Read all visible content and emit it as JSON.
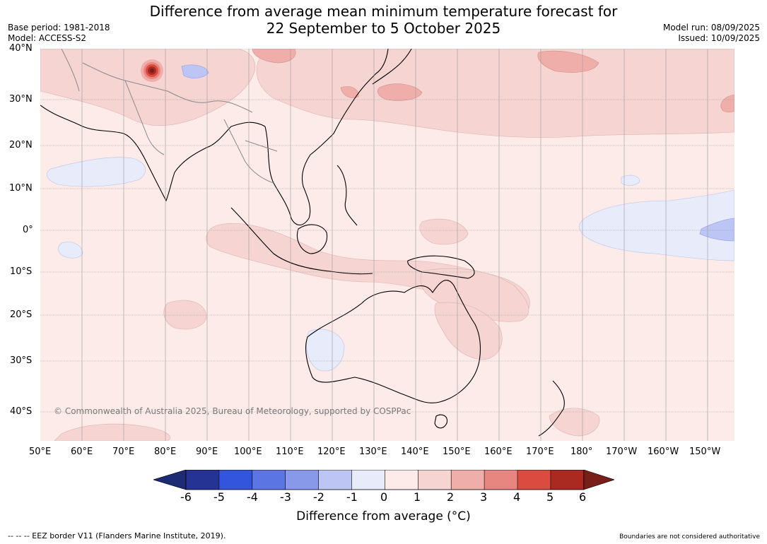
{
  "title": {
    "line1": "Difference from average mean minimum temperature forecast for",
    "line2": "22 September to 5 October 2025"
  },
  "meta": {
    "base_period": "Base period: 1981-2018",
    "model": "Model: ACCESS-S2",
    "model_run": "Model run: 08/09/2025",
    "issued": "Issued: 10/09/2025"
  },
  "map": {
    "lon_range": [
      50,
      216
    ],
    "lat_range": [
      -46,
      40
    ],
    "lat_ticks": [
      "40°N",
      "30°N",
      "20°N",
      "10°N",
      "0°",
      "10°S",
      "20°S",
      "30°S",
      "40°S"
    ],
    "lon_ticks": [
      "50°E",
      "60°E",
      "70°E",
      "80°E",
      "90°E",
      "100°E",
      "110°E",
      "120°E",
      "130°E",
      "140°E",
      "150°E",
      "160°E",
      "170°E",
      "180°",
      "170°W",
      "160°W",
      "150°W"
    ],
    "background_anomaly_class": "0 to 1",
    "regions": [
      {
        "name": "band-north-pacific",
        "class": "1 to 2"
      },
      {
        "name": "band-west-pacific",
        "class": "1 to 2"
      },
      {
        "name": "maritime-continent",
        "class": "1 to 2"
      },
      {
        "name": "coral-sea",
        "class": "1 to 2"
      },
      {
        "name": "indian-ocean-patch",
        "class": "1 to 2"
      },
      {
        "name": "eastern-australia",
        "class": "1 to 2"
      },
      {
        "name": "equatorial-east-pacific",
        "class": "-1 to 0"
      },
      {
        "name": "equatorial-east-pacific-core",
        "class": "-2 to -1"
      },
      {
        "name": "western-australia-cool",
        "class": "-1 to 0"
      },
      {
        "name": "arabian-sea-cool",
        "class": "-1 to 0"
      },
      {
        "name": "tibet-cool",
        "class": "-2 to -1"
      },
      {
        "name": "karakoram-hotspot",
        "class": ">6"
      },
      {
        "name": "japan-sea-warm",
        "class": "2 to 3"
      },
      {
        "name": "north-pacific-warm",
        "class": "2 to 3"
      }
    ],
    "copyright": "© Commonwealth of Australia 2025, Bureau of Meteorology, supported by COSPPac"
  },
  "colorbar": {
    "ticks": [
      "-6",
      "-5",
      "-4",
      "-3",
      "-2",
      "-1",
      "0",
      "1",
      "2",
      "3",
      "4",
      "5",
      "6"
    ],
    "colors": [
      "#253494",
      "#2c3fb0",
      "#3355dd",
      "#5b75e2",
      "#8899ea",
      "#bcc5f3",
      "#e7ebfa",
      "#fcebe9",
      "#f5d4d2",
      "#efaeaa",
      "#e78580",
      "#dc4b40",
      "#aa2a22"
    ],
    "under_color": "#1d2a74",
    "over_color": "#7a1e19",
    "label": "Difference from average (°C)"
  },
  "footer": {
    "eez": "--  --  -- EEZ border V11 (Flanders Marine Institute, 2019).",
    "boundaries": "Boundaries are not considered authoritative"
  }
}
